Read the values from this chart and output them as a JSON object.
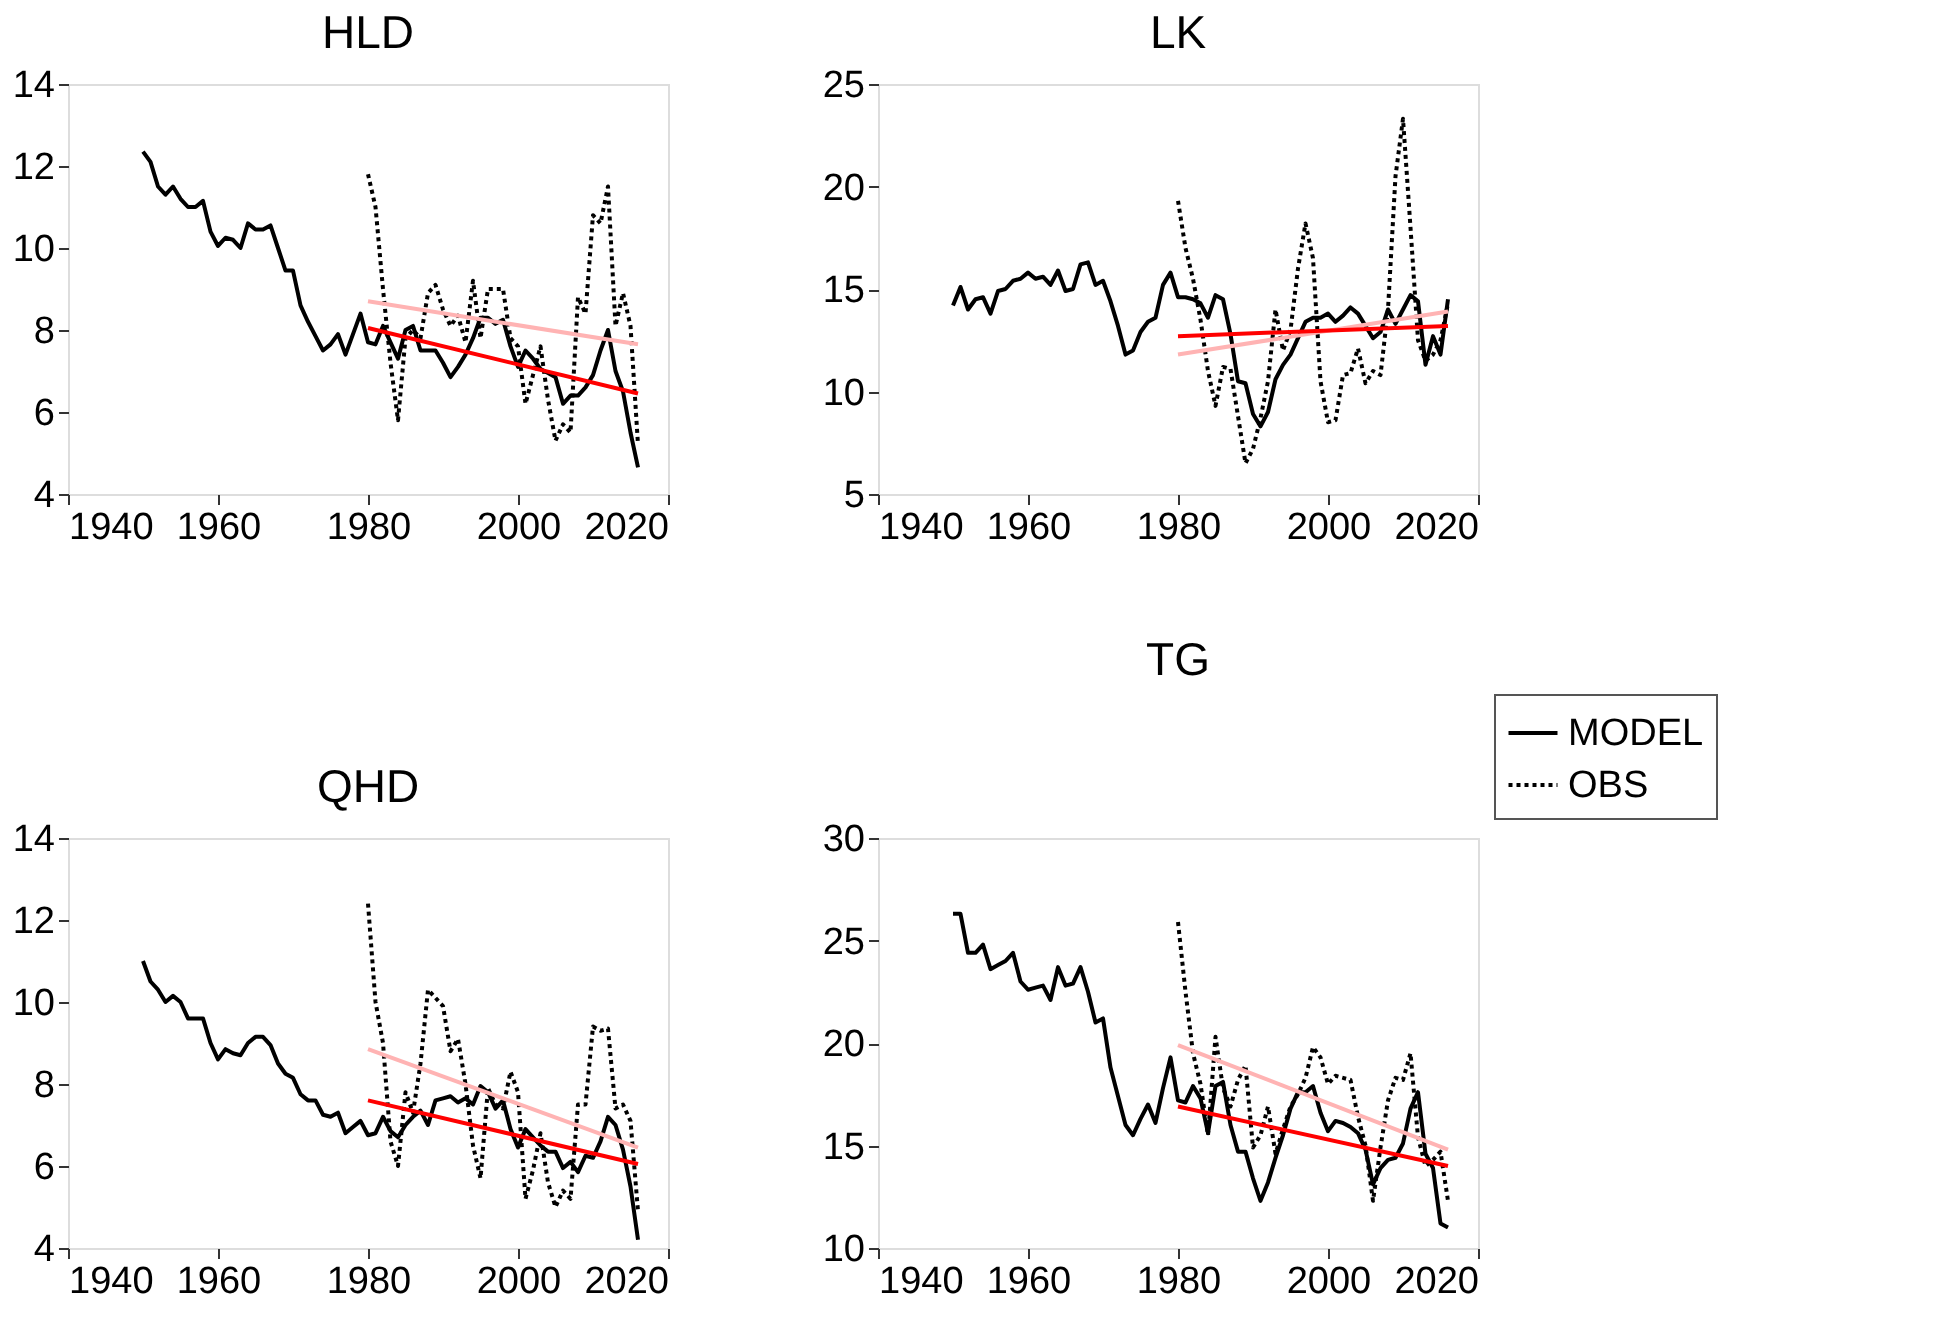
{
  "chart_data": [
    {
      "type": "line",
      "title": "HLD",
      "xlim": [
        1940,
        2020
      ],
      "xticks": [
        1940,
        1960,
        1980,
        2000,
        2020
      ],
      "ylim": [
        4,
        14
      ],
      "yticks": [
        4,
        6,
        8,
        10,
        12,
        14
      ],
      "grid": false,
      "legend": false,
      "x": [
        1950,
        1951,
        1952,
        1953,
        1954,
        1955,
        1956,
        1957,
        1958,
        1959,
        1960,
        1961,
        1962,
        1963,
        1964,
        1965,
        1966,
        1967,
        1968,
        1969,
        1970,
        1971,
        1972,
        1973,
        1974,
        1975,
        1976,
        1977,
        1978,
        1979,
        1980,
        1981,
        1982,
        1983,
        1984,
        1985,
        1986,
        1987,
        1988,
        1989,
        1990,
        1991,
        1992,
        1993,
        1994,
        1995,
        1996,
        1997,
        1998,
        1999,
        2000,
        2001,
        2002,
        2003,
        2004,
        2005,
        2006,
        2007,
        2008,
        2009,
        2010,
        2011,
        2012,
        2013,
        2014,
        2015,
        2016
      ],
      "series": [
        {
          "color": "#000000",
          "line_style": "solid",
          "values": [
            12.35,
            12.1,
            11.5,
            11.3,
            11.5,
            11.2,
            11.0,
            11.0,
            11.15,
            10.4,
            10.05,
            10.25,
            10.2,
            10.0,
            10.6,
            10.45,
            10.45,
            10.55,
            10.0,
            9.45,
            9.45,
            8.6,
            8.2,
            7.85,
            7.5,
            7.65,
            7.9,
            7.4,
            7.9,
            8.4,
            7.7,
            7.65,
            8.1,
            7.7,
            7.3,
            8.0,
            8.1,
            7.5,
            7.5,
            7.5,
            7.2,
            6.85,
            7.1,
            7.4,
            7.8,
            8.3,
            8.3,
            8.15,
            8.25,
            7.6,
            7.1,
            7.5,
            7.3,
            7.05,
            6.95,
            6.85,
            6.2,
            6.4,
            6.4,
            6.6,
            6.9,
            7.5,
            8.0,
            7.0,
            6.5,
            5.5,
            4.65
          ]
        },
        {
          "color": "#000000",
          "line_style": "dotted",
          "x": [
            1980,
            1981,
            1982,
            1983,
            1984,
            1985,
            1986,
            1987,
            1988,
            1989,
            1990,
            1991,
            1992,
            1993,
            1994,
            1995,
            1996,
            1997,
            1998,
            1999,
            2000,
            2001,
            2002,
            2003,
            2004,
            2005,
            2006,
            2007,
            2008,
            2009,
            2010,
            2011,
            2012,
            2013,
            2014,
            2015,
            2016
          ],
          "values": [
            11.8,
            11.0,
            9.0,
            7.2,
            5.8,
            7.8,
            8.0,
            7.8,
            8.9,
            9.1,
            8.5,
            8.1,
            8.35,
            7.7,
            9.2,
            7.8,
            9.0,
            9.0,
            9.0,
            7.8,
            7.6,
            6.2,
            6.9,
            7.6,
            6.3,
            5.3,
            5.7,
            5.5,
            8.8,
            8.4,
            10.8,
            10.6,
            11.5,
            8.1,
            8.9,
            8.1,
            5.2
          ]
        },
        {
          "color": "#ffb3b3",
          "line_style": "solid",
          "x": [
            1980,
            2016
          ],
          "values": [
            8.7,
            7.65
          ]
        },
        {
          "color": "#ff0000",
          "line_style": "solid",
          "x": [
            1980,
            2016
          ],
          "values": [
            8.05,
            6.45
          ]
        }
      ]
    },
    {
      "type": "line",
      "title": "LK",
      "xlim": [
        1940,
        2020
      ],
      "xticks": [
        1940,
        1960,
        1980,
        2000,
        2020
      ],
      "ylim": [
        5,
        25
      ],
      "yticks": [
        5,
        10,
        15,
        20,
        25
      ],
      "grid": false,
      "legend": false,
      "x": [
        1950,
        1951,
        1952,
        1953,
        1954,
        1955,
        1956,
        1957,
        1958,
        1959,
        1960,
        1961,
        1962,
        1963,
        1964,
        1965,
        1966,
        1967,
        1968,
        1969,
        1970,
        1971,
        1972,
        1973,
        1974,
        1975,
        1976,
        1977,
        1978,
        1979,
        1980,
        1981,
        1982,
        1983,
        1984,
        1985,
        1986,
        1987,
        1988,
        1989,
        1990,
        1991,
        1992,
        1993,
        1994,
        1995,
        1996,
        1997,
        1998,
        1999,
        2000,
        2001,
        2002,
        2003,
        2004,
        2005,
        2006,
        2007,
        2008,
        2009,
        2010,
        2011,
        2012,
        2013,
        2014,
        2015,
        2016
      ],
      "series": [
        {
          "color": "#000000",
          "line_style": "solid",
          "values": [
            14.2,
            15.1,
            14.0,
            14.5,
            14.6,
            13.8,
            14.9,
            15.0,
            15.4,
            15.5,
            15.8,
            15.5,
            15.6,
            15.2,
            15.9,
            14.9,
            15.0,
            16.2,
            16.3,
            15.2,
            15.4,
            14.4,
            13.2,
            11.8,
            12.0,
            12.9,
            13.4,
            13.6,
            15.2,
            15.8,
            14.6,
            14.6,
            14.5,
            14.3,
            13.6,
            14.7,
            14.5,
            12.8,
            10.5,
            10.4,
            8.9,
            8.3,
            9.0,
            10.6,
            11.3,
            11.8,
            12.6,
            13.4,
            13.6,
            13.6,
            13.8,
            13.4,
            13.7,
            14.1,
            13.8,
            13.2,
            12.6,
            12.9,
            14.0,
            13.3,
            14.0,
            14.7,
            14.4,
            11.3,
            12.7,
            11.8,
            14.5
          ]
        },
        {
          "color": "#000000",
          "line_style": "dotted",
          "x": [
            1980,
            1981,
            1982,
            1983,
            1984,
            1985,
            1986,
            1987,
            1988,
            1989,
            1990,
            1991,
            1992,
            1993,
            1994,
            1995,
            1996,
            1997,
            1998,
            1999,
            2000,
            2001,
            2002,
            2003,
            2004,
            2005,
            2006,
            2007,
            2008,
            2009,
            2010,
            2011,
            2012,
            2013,
            2014,
            2015,
            2016
          ],
          "values": [
            19.3,
            17.0,
            15.5,
            13.5,
            11.0,
            9.3,
            11.2,
            11.1,
            8.8,
            6.5,
            7.2,
            8.7,
            10.5,
            14.0,
            12.0,
            13.0,
            16.0,
            18.2,
            16.5,
            10.5,
            8.5,
            8.6,
            10.8,
            10.9,
            12.1,
            10.4,
            11.0,
            10.8,
            14.0,
            20.5,
            23.3,
            18.0,
            12.5,
            11.5,
            11.8,
            12.5,
            14.3
          ]
        },
        {
          "color": "#ffb3b3",
          "line_style": "solid",
          "x": [
            1980,
            2016
          ],
          "values": [
            11.8,
            13.9
          ]
        },
        {
          "color": "#ff0000",
          "line_style": "solid",
          "x": [
            1980,
            2016
          ],
          "values": [
            12.7,
            13.2
          ]
        }
      ]
    },
    {
      "type": "line",
      "title": "QHD",
      "xlim": [
        1940,
        2020
      ],
      "xticks": [
        1940,
        1960,
        1980,
        2000,
        2020
      ],
      "ylim": [
        4,
        14
      ],
      "yticks": [
        4,
        6,
        8,
        10,
        12,
        14
      ],
      "grid": false,
      "legend": false,
      "x": [
        1950,
        1951,
        1952,
        1953,
        1954,
        1955,
        1956,
        1957,
        1958,
        1959,
        1960,
        1961,
        1962,
        1963,
        1964,
        1965,
        1966,
        1967,
        1968,
        1969,
        1970,
        1971,
        1972,
        1973,
        1974,
        1975,
        1976,
        1977,
        1978,
        1979,
        1980,
        1981,
        1982,
        1983,
        1984,
        1985,
        1986,
        1987,
        1988,
        1989,
        1990,
        1991,
        1992,
        1993,
        1994,
        1995,
        1996,
        1997,
        1998,
        1999,
        2000,
        2001,
        2002,
        2003,
        2004,
        2005,
        2006,
        2007,
        2008,
        2009,
        2010,
        2011,
        2012,
        2013,
        2014,
        2015,
        2016
      ],
      "series": [
        {
          "color": "#000000",
          "line_style": "solid",
          "values": [
            11.0,
            10.5,
            10.3,
            10.0,
            10.15,
            10.0,
            9.6,
            9.6,
            9.6,
            9.0,
            8.6,
            8.85,
            8.75,
            8.7,
            9.0,
            9.15,
            9.15,
            8.95,
            8.5,
            8.25,
            8.15,
            7.75,
            7.6,
            7.6,
            7.25,
            7.2,
            7.3,
            6.8,
            6.95,
            7.1,
            6.75,
            6.8,
            7.2,
            6.85,
            6.7,
            7.0,
            7.2,
            7.35,
            7.0,
            7.6,
            7.65,
            7.7,
            7.55,
            7.65,
            7.5,
            7.95,
            7.8,
            7.4,
            7.6,
            6.9,
            6.45,
            6.9,
            6.7,
            6.5,
            6.35,
            6.35,
            5.95,
            6.1,
            5.85,
            6.25,
            6.2,
            6.6,
            7.2,
            7.0,
            6.4,
            5.5,
            4.2
          ]
        },
        {
          "color": "#000000",
          "line_style": "dotted",
          "x": [
            1980,
            1981,
            1982,
            1983,
            1984,
            1985,
            1986,
            1987,
            1988,
            1989,
            1990,
            1991,
            1992,
            1993,
            1994,
            1995,
            1996,
            1997,
            1998,
            1999,
            2000,
            2001,
            2002,
            2003,
            2004,
            2005,
            2006,
            2007,
            2008,
            2009,
            2010,
            2011,
            2012,
            2013,
            2014,
            2015,
            2016
          ],
          "values": [
            12.4,
            10.0,
            9.0,
            6.6,
            6.0,
            7.8,
            7.3,
            8.5,
            10.3,
            10.1,
            9.9,
            8.8,
            9.1,
            8.0,
            6.5,
            5.7,
            7.9,
            7.5,
            7.4,
            8.3,
            7.8,
            5.2,
            5.9,
            6.8,
            5.6,
            5.0,
            5.4,
            5.2,
            7.5,
            7.5,
            9.4,
            9.3,
            9.35,
            7.4,
            7.5,
            7.1,
            4.9
          ]
        },
        {
          "color": "#ffb3b3",
          "line_style": "solid",
          "x": [
            1980,
            2016
          ],
          "values": [
            8.85,
            6.45
          ]
        },
        {
          "color": "#ff0000",
          "line_style": "solid",
          "x": [
            1980,
            2016
          ],
          "values": [
            7.6,
            6.05
          ]
        }
      ]
    },
    {
      "type": "line",
      "title": "TG",
      "xlim": [
        1940,
        2020
      ],
      "xticks": [
        1940,
        1960,
        1980,
        2000,
        2020
      ],
      "ylim": [
        10,
        30
      ],
      "yticks": [
        10,
        15,
        20,
        25,
        30
      ],
      "grid": false,
      "legend": "top right",
      "x": [
        1950,
        1951,
        1952,
        1953,
        1954,
        1955,
        1956,
        1957,
        1958,
        1959,
        1960,
        1961,
        1962,
        1963,
        1964,
        1965,
        1966,
        1967,
        1968,
        1969,
        1970,
        1971,
        1972,
        1973,
        1974,
        1975,
        1976,
        1977,
        1978,
        1979,
        1980,
        1981,
        1982,
        1983,
        1984,
        1985,
        1986,
        1987,
        1988,
        1989,
        1990,
        1991,
        1992,
        1993,
        1994,
        1995,
        1996,
        1997,
        1998,
        1999,
        2000,
        2001,
        2002,
        2003,
        2004,
        2005,
        2006,
        2007,
        2008,
        2009,
        2010,
        2011,
        2012,
        2013,
        2014,
        2015,
        2016
      ],
      "series": [
        {
          "name": "MODEL",
          "color": "#000000",
          "line_style": "solid",
          "values": [
            26.3,
            26.3,
            24.4,
            24.4,
            24.8,
            23.6,
            23.8,
            24.0,
            24.4,
            23.0,
            22.6,
            22.7,
            22.8,
            22.1,
            23.7,
            22.8,
            22.9,
            23.7,
            22.5,
            21.0,
            21.2,
            18.8,
            17.4,
            16.0,
            15.5,
            16.3,
            17.0,
            16.1,
            17.8,
            19.3,
            17.2,
            17.1,
            17.9,
            17.3,
            15.6,
            17.9,
            18.1,
            16.0,
            14.7,
            14.7,
            13.4,
            12.3,
            13.2,
            14.4,
            15.5,
            16.8,
            17.6,
            17.6,
            17.9,
            16.6,
            15.7,
            16.2,
            16.1,
            15.9,
            15.6,
            14.8,
            13.1,
            13.9,
            14.3,
            14.4,
            15.1,
            16.8,
            17.6,
            14.6,
            13.9,
            11.2,
            11.0
          ]
        },
        {
          "name": "OBS",
          "color": "#000000",
          "line_style": "dotted",
          "x": [
            1980,
            1981,
            1982,
            1983,
            1984,
            1985,
            1986,
            1987,
            1988,
            1989,
            1990,
            1991,
            1992,
            1993,
            1994,
            1995,
            1996,
            1997,
            1998,
            1999,
            2000,
            2001,
            2002,
            2003,
            2004,
            2005,
            2006,
            2007,
            2008,
            2009,
            2010,
            2011,
            2012,
            2013,
            2014,
            2015,
            2016
          ],
          "values": [
            25.9,
            22.5,
            19.5,
            18.0,
            15.5,
            20.3,
            17.8,
            16.9,
            18.2,
            18.9,
            14.9,
            15.5,
            16.9,
            14.6,
            15.8,
            16.9,
            17.5,
            18.3,
            19.8,
            19.3,
            18.0,
            18.4,
            18.3,
            18.2,
            16.4,
            15.0,
            12.3,
            14.9,
            17.2,
            18.3,
            18.2,
            19.5,
            15.4,
            14.0,
            14.3,
            14.7,
            12.3
          ]
        },
        {
          "color": "#ffb3b3",
          "line_style": "solid",
          "x": [
            1980,
            2016
          ],
          "values": [
            19.9,
            14.8
          ]
        },
        {
          "color": "#ff0000",
          "line_style": "solid",
          "x": [
            1980,
            2016
          ],
          "values": [
            16.9,
            14.0
          ]
        }
      ]
    }
  ]
}
